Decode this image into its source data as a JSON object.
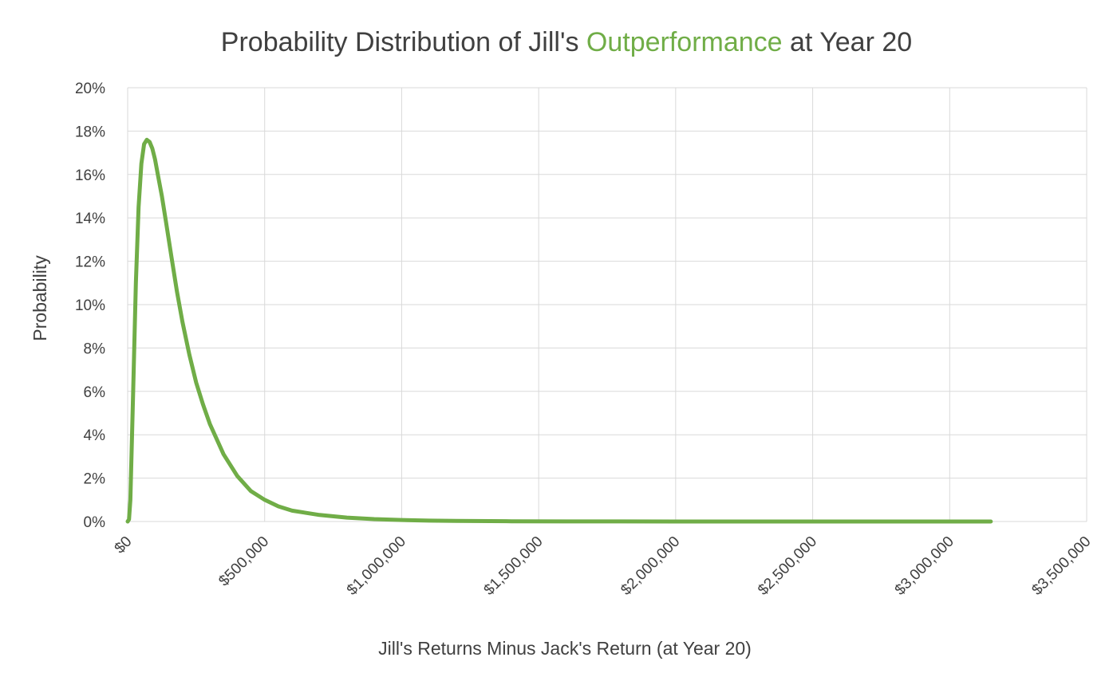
{
  "chart_data": {
    "type": "line",
    "title_parts": [
      {
        "text": "Probability Distribution of Jill's ",
        "color": "#404040"
      },
      {
        "text": "Outperformance",
        "color": "#70AD47"
      },
      {
        "text": " at Year 20",
        "color": "#404040"
      }
    ],
    "xlabel": "Jill's Returns  Minus Jack's Return  (at Year 20)",
    "ylabel": "Probability",
    "xlim": [
      0,
      3500000
    ],
    "ylim": [
      0,
      0.2
    ],
    "x_ticks": [
      "$0",
      "$500,000",
      "$1,000,000",
      "$1,500,000",
      "$2,000,000",
      "$2,500,000",
      "$3,000,000",
      "$3,500,000"
    ],
    "y_ticks": [
      "0%",
      "2%",
      "4%",
      "6%",
      "8%",
      "10%",
      "12%",
      "14%",
      "16%",
      "18%",
      "20%"
    ],
    "grid": true,
    "legend": "none",
    "series_color": "#70AD47",
    "series": [
      {
        "x": [
          0,
          5000,
          10000,
          20000,
          30000,
          40000,
          50000,
          60000,
          70000,
          80000,
          90000,
          100000,
          110000,
          125000,
          140000,
          160000,
          180000,
          200000,
          225000,
          250000,
          275000,
          300000,
          350000,
          400000,
          450000,
          500000,
          550000,
          600000,
          700000,
          800000,
          900000,
          1000000,
          1100000,
          1200000,
          1400000,
          1600000,
          1800000,
          2000000,
          2500000,
          3000000,
          3150000
        ],
        "y": [
          0,
          0.001,
          0.01,
          0.06,
          0.11,
          0.145,
          0.165,
          0.174,
          0.176,
          0.175,
          0.172,
          0.167,
          0.16,
          0.15,
          0.138,
          0.122,
          0.106,
          0.092,
          0.077,
          0.064,
          0.054,
          0.045,
          0.031,
          0.021,
          0.014,
          0.01,
          0.007,
          0.005,
          0.003,
          0.0018,
          0.0011,
          0.0007,
          0.0004,
          0.0003,
          0.0001,
          5e-05,
          2e-05,
          1e-05,
          0,
          0,
          0
        ]
      }
    ]
  }
}
